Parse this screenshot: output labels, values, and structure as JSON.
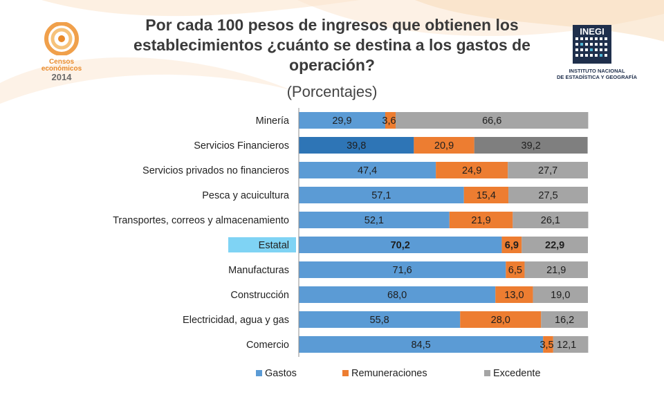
{
  "header": {
    "title_lines": [
      "Por cada 100 pesos de ingresos que obtienen los",
      "establecimientos  ¿cuánto se destina a los gastos de",
      "operación?"
    ],
    "subtitle": "(Porcentajes)"
  },
  "logos": {
    "censos": {
      "line1": "Censos",
      "line2": "económicos",
      "line3": "2014"
    },
    "inegi": {
      "name": "INEGI",
      "line1": "INSTITUTO NACIONAL",
      "line2": "DE ESTADÍSTICA Y GEOGRAFÍA"
    }
  },
  "chart_data": {
    "type": "bar",
    "orientation": "horizontal",
    "stacked": true,
    "percent_stacked": true,
    "title": "Por cada 100 pesos de ingresos que obtienen los establecimientos ¿cuánto se destina a los gastos de operación?",
    "subtitle": "(Porcentajes)",
    "categories": [
      "Minería",
      "Servicios Financieros",
      "Servicios privados no financieros",
      "Pesca y acuicultura",
      "Transportes, correos y almacenamiento",
      "Estatal",
      "Manufacturas",
      "Construcción",
      "Electricidad, agua y gas",
      "Comercio"
    ],
    "highlight_category": "Estatal",
    "series": [
      {
        "name": "Gastos",
        "color": "#5b9bd5",
        "values": [
          29.9,
          39.8,
          47.4,
          57.1,
          52.1,
          70.2,
          71.6,
          68.0,
          55.8,
          84.5
        ],
        "labels": [
          "29,9",
          "39,8",
          "47,4",
          "57,1",
          "52,1",
          "70,2",
          "71,6",
          "68,0",
          "55,8",
          "84,5"
        ]
      },
      {
        "name": "Remuneraciones",
        "color": "#ed7d31",
        "values": [
          3.6,
          20.9,
          24.9,
          15.4,
          21.9,
          6.9,
          6.5,
          13.0,
          28.0,
          3.5
        ],
        "labels": [
          "3,6",
          "20,9",
          "24,9",
          "15,4",
          "21,9",
          "6,9",
          "6,5",
          "13,0",
          "28,0",
          "3,5"
        ]
      },
      {
        "name": "Excedente",
        "color": "#a5a5a5",
        "values": [
          66.6,
          39.2,
          27.7,
          27.5,
          26.1,
          22.9,
          21.9,
          19.0,
          16.2,
          12.1
        ],
        "labels": [
          "66,6",
          "39,2",
          "27,7",
          "27,5",
          "26,1",
          "22,9",
          "21,9",
          "19,0",
          "16,2",
          "12,1"
        ]
      }
    ],
    "xlim": [
      0,
      100
    ],
    "legend": "bottom",
    "colors": {
      "highlight_label_bg": "#7fd3f4",
      "financieros_gastos": "#2e75b6",
      "financieros_remuneraciones": "#ed7d31",
      "financieros_excedente": "#7f7f7f"
    }
  }
}
